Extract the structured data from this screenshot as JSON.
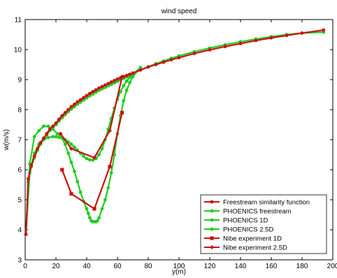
{
  "chart_data": {
    "type": "line",
    "title": "wind speed",
    "xlabel": "y(m)",
    "ylabel": "w(m/s)",
    "xlim": [
      0,
      200
    ],
    "ylim": [
      3,
      11
    ],
    "xticks": [
      0,
      20,
      40,
      60,
      80,
      100,
      120,
      140,
      160,
      180,
      200
    ],
    "yticks": [
      3,
      4,
      5,
      6,
      7,
      8,
      9,
      10,
      11
    ],
    "grid": false,
    "legend_position": "bottom-right",
    "series": [
      {
        "name": "Freestream similarity function",
        "color": "#cc1111",
        "marker": "dot",
        "x": [
          0.5,
          2,
          4,
          6,
          8,
          10,
          12,
          14,
          16,
          18,
          20,
          22,
          24,
          26,
          28,
          30,
          32,
          34,
          36,
          38,
          40,
          42,
          44,
          46,
          48,
          50,
          52,
          54,
          56,
          58,
          60,
          62,
          64,
          66,
          68,
          70,
          75,
          80,
          85,
          90,
          95,
          100,
          110,
          120,
          130,
          140,
          150,
          160,
          170,
          180,
          194
        ],
        "y": [
          3.85,
          5.7,
          6.15,
          6.45,
          6.7,
          6.9,
          7.05,
          7.2,
          7.35,
          7.45,
          7.55,
          7.68,
          7.8,
          7.9,
          8.0,
          8.1,
          8.18,
          8.26,
          8.33,
          8.4,
          8.47,
          8.54,
          8.6,
          8.66,
          8.72,
          8.77,
          8.82,
          8.87,
          8.92,
          8.97,
          9.02,
          9.06,
          9.1,
          9.14,
          9.18,
          9.22,
          9.32,
          9.42,
          9.5,
          9.58,
          9.66,
          9.73,
          9.87,
          9.99,
          10.1,
          10.2,
          10.3,
          10.39,
          10.47,
          10.55,
          10.65
        ]
      },
      {
        "name": "PHOENICS freestream",
        "color": "#22cc22",
        "marker": "dot",
        "x": [
          0.5,
          2,
          4,
          6,
          8,
          10,
          12,
          14,
          16,
          18,
          20,
          22,
          24,
          26,
          28,
          30,
          32,
          34,
          36,
          38,
          40,
          42,
          44,
          46,
          48,
          50,
          52,
          54,
          56,
          58,
          60,
          62,
          64,
          66,
          68,
          70,
          75,
          80,
          85,
          90,
          95,
          100,
          110,
          120,
          130,
          140,
          150,
          160,
          170,
          180,
          194
        ],
        "y": [
          3.85,
          5.6,
          6.1,
          6.4,
          6.65,
          6.85,
          7.0,
          7.15,
          7.3,
          7.4,
          7.5,
          7.62,
          7.73,
          7.83,
          7.93,
          8.02,
          8.1,
          8.18,
          8.25,
          8.32,
          8.39,
          8.46,
          8.52,
          8.58,
          8.64,
          8.69,
          8.74,
          8.79,
          8.84,
          8.89,
          8.94,
          8.99,
          9.04,
          9.09,
          9.14,
          9.2,
          9.32,
          9.43,
          9.53,
          9.62,
          9.71,
          9.79,
          9.93,
          10.05,
          10.16,
          10.26,
          10.35,
          10.43,
          10.5,
          10.55,
          10.58
        ]
      },
      {
        "name": "PHOENICS 1D",
        "color": "#22cc22",
        "marker": "dot",
        "x": [
          0.5,
          3,
          6,
          9,
          12,
          15,
          18,
          21,
          24,
          26,
          28,
          30,
          32,
          34,
          36,
          38,
          40,
          41,
          42,
          43,
          44,
          45,
          46,
          47,
          48,
          50,
          52,
          54,
          56,
          58,
          60,
          62,
          64,
          66,
          68,
          70,
          75
        ],
        "y": [
          3.85,
          6.2,
          7.1,
          7.3,
          7.45,
          7.45,
          7.35,
          7.2,
          7.05,
          6.85,
          6.55,
          6.25,
          5.95,
          5.6,
          5.25,
          4.95,
          4.7,
          4.55,
          4.4,
          4.3,
          4.27,
          4.27,
          4.27,
          4.3,
          4.4,
          4.7,
          5.0,
          5.4,
          5.9,
          6.5,
          7.2,
          7.8,
          8.3,
          8.65,
          8.9,
          9.1,
          9.4
        ]
      },
      {
        "name": "PHOENICS 2.5D",
        "color": "#22cc22",
        "marker": "dot",
        "x": [
          0.5,
          3,
          6,
          9,
          12,
          15,
          18,
          20,
          22,
          24,
          26,
          28,
          30,
          32,
          34,
          36,
          38,
          40,
          42,
          44,
          46,
          48,
          50,
          52,
          54,
          56,
          58,
          60,
          62,
          64,
          66,
          68,
          70,
          75
        ],
        "y": [
          3.85,
          5.9,
          6.55,
          6.85,
          7.0,
          7.07,
          7.1,
          7.1,
          7.08,
          7.05,
          7.0,
          6.93,
          6.85,
          6.75,
          6.65,
          6.55,
          6.45,
          6.37,
          6.33,
          6.32,
          6.37,
          6.5,
          6.7,
          7.0,
          7.35,
          7.7,
          8.05,
          8.35,
          8.6,
          8.8,
          8.95,
          9.08,
          9.18,
          9.4
        ]
      },
      {
        "name": "Nibe experiment 1D",
        "color": "#cc1111",
        "marker": "square",
        "x": [
          24,
          30,
          45,
          55,
          63
        ],
        "y": [
          6.0,
          5.2,
          4.7,
          6.1,
          7.9
        ]
      },
      {
        "name": "Nibe experiment 2.5D",
        "color": "#cc1111",
        "marker": "diamond",
        "x": [
          23,
          30,
          45,
          55,
          63
        ],
        "y": [
          7.2,
          6.7,
          6.4,
          7.3,
          9.1
        ]
      }
    ]
  }
}
